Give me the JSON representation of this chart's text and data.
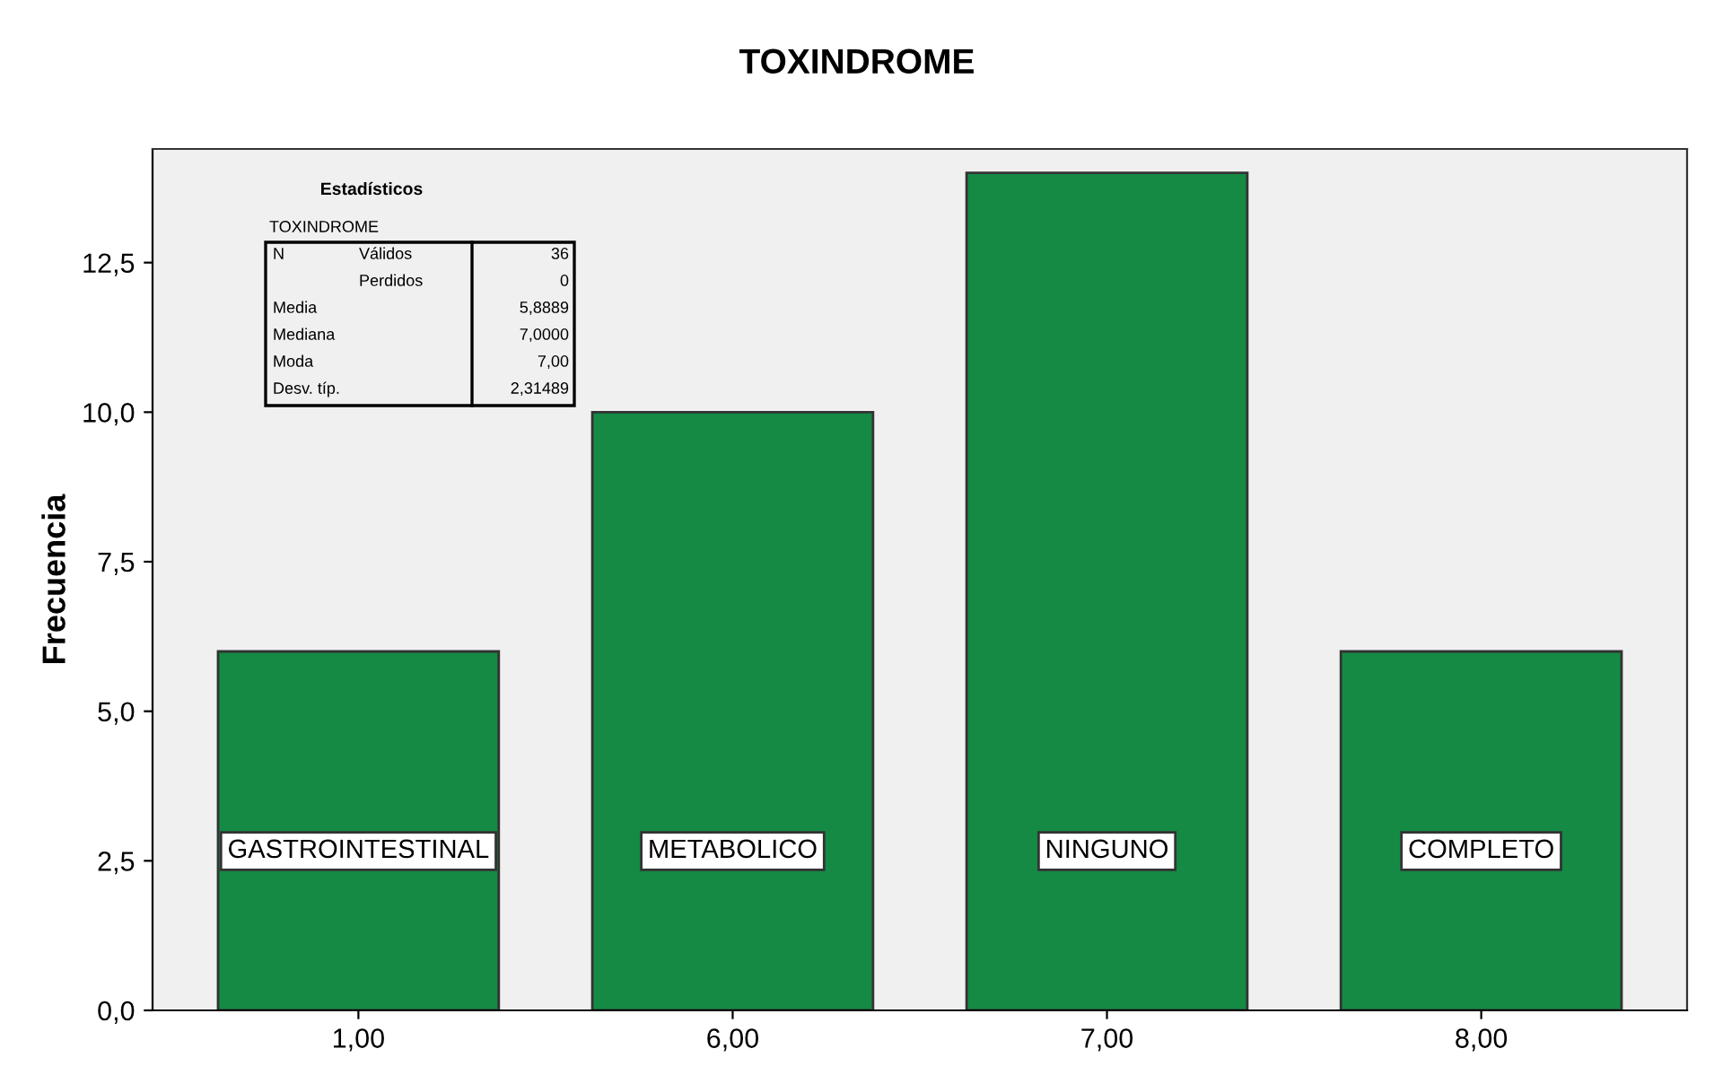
{
  "chart_data": {
    "type": "bar",
    "title": "TOXINDROME",
    "ylabel": "Frecuencia",
    "categories": [
      "1,00",
      "6,00",
      "7,00",
      "8,00"
    ],
    "values": [
      6,
      10,
      14,
      6
    ],
    "color": "#148a45",
    "ylim": [
      0,
      14.4
    ],
    "yticks": [
      {
        "value": 0,
        "label": "0,0"
      },
      {
        "value": 2.5,
        "label": "2,5"
      },
      {
        "value": 5,
        "label": "5,0"
      },
      {
        "value": 7.5,
        "label": "7,5"
      },
      {
        "value": 10,
        "label": "10,0"
      },
      {
        "value": 12.5,
        "label": "12,5"
      }
    ],
    "grid": false,
    "annotations": [
      "GASTROINTESTINAL",
      "METABOLICO",
      "NINGUNO",
      "COMPLETO",
      "Estadísticos",
      "TOXINDROME",
      "N",
      "Válidos",
      "36",
      "Perdidos",
      "0",
      "Media",
      "5,8889",
      "Mediana",
      "7,0000",
      "Moda",
      "7,00",
      "Desv. típ.",
      "2,31489"
    ]
  }
}
